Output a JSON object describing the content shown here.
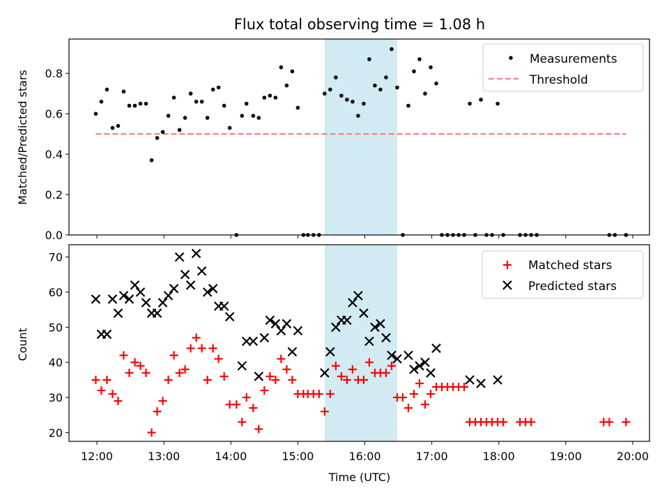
{
  "title": "Flux total observing time = 1.08 h",
  "colors": {
    "measurement": "#000000",
    "threshold": "#ff7f7f",
    "matched": "#ff0000",
    "predicted": "#000000",
    "highlight": "#add8e6"
  },
  "chart_data": [
    {
      "type": "scatter",
      "panel": "top",
      "xlabel": "",
      "ylabel": "Matched/Predicted stars",
      "ylim": [
        0.0,
        0.97
      ],
      "yticks": [
        0.0,
        0.2,
        0.4,
        0.6,
        0.8
      ],
      "ytick_labels": [
        "0.0",
        "0.2",
        "0.4",
        "0.6",
        "0.8"
      ],
      "highlight_span": [
        "15:24",
        "16:29"
      ],
      "legend": {
        "position": "top-right",
        "entries": [
          "Measurements",
          "Threshold"
        ]
      },
      "series": [
        {
          "name": "Measurements",
          "style": "dot",
          "points": [
            [
              "11:59",
              0.6
            ],
            [
              "12:04",
              0.66
            ],
            [
              "12:09",
              0.72
            ],
            [
              "12:14",
              0.53
            ],
            [
              "12:19",
              0.54
            ],
            [
              "12:24",
              0.71
            ],
            [
              "12:29",
              0.64
            ],
            [
              "12:34",
              0.64
            ],
            [
              "12:39",
              0.65
            ],
            [
              "12:44",
              0.65
            ],
            [
              "12:49",
              0.37
            ],
            [
              "12:54",
              0.48
            ],
            [
              "12:59",
              0.51
            ],
            [
              "13:04",
              0.59
            ],
            [
              "13:09",
              0.68
            ],
            [
              "13:14",
              0.52
            ],
            [
              "13:19",
              0.58
            ],
            [
              "13:24",
              0.7
            ],
            [
              "13:29",
              0.66
            ],
            [
              "13:34",
              0.66
            ],
            [
              "13:39",
              0.58
            ],
            [
              "13:44",
              0.72
            ],
            [
              "13:49",
              0.73
            ],
            [
              "13:54",
              0.64
            ],
            [
              "13:59",
              0.53
            ],
            [
              "14:05",
              0.0
            ],
            [
              "14:10",
              0.59
            ],
            [
              "14:14",
              0.65
            ],
            [
              "14:20",
              0.59
            ],
            [
              "14:25",
              0.58
            ],
            [
              "14:30",
              0.68
            ],
            [
              "14:35",
              0.69
            ],
            [
              "14:40",
              0.68
            ],
            [
              "14:45",
              0.83
            ],
            [
              "14:50",
              0.74
            ],
            [
              "14:55",
              0.81
            ],
            [
              "15:00",
              0.63
            ],
            [
              "15:05",
              0.0
            ],
            [
              "15:09",
              0.0
            ],
            [
              "15:14",
              0.0
            ],
            [
              "15:19",
              0.0
            ],
            [
              "15:24",
              0.7
            ],
            [
              "15:29",
              0.72
            ],
            [
              "15:34",
              0.78
            ],
            [
              "15:39",
              0.69
            ],
            [
              "15:44",
              0.67
            ],
            [
              "15:49",
              0.66
            ],
            [
              "15:54",
              0.59
            ],
            [
              "15:59",
              0.65
            ],
            [
              "16:04",
              0.87
            ],
            [
              "16:09",
              0.74
            ],
            [
              "16:14",
              0.72
            ],
            [
              "16:19",
              0.78
            ],
            [
              "16:24",
              0.92
            ],
            [
              "16:29",
              0.73
            ],
            [
              "16:34",
              0.0
            ],
            [
              "16:39",
              0.64
            ],
            [
              "16:44",
              0.81
            ],
            [
              "16:49",
              0.87
            ],
            [
              "16:54",
              0.7
            ],
            [
              "16:59",
              0.83
            ],
            [
              "17:04",
              0.75
            ],
            [
              "17:09",
              0.0
            ],
            [
              "17:14",
              0.0
            ],
            [
              "17:19",
              0.0
            ],
            [
              "17:24",
              0.0
            ],
            [
              "17:29",
              0.0
            ],
            [
              "17:34",
              0.65
            ],
            [
              "17:39",
              0.0
            ],
            [
              "17:44",
              0.67
            ],
            [
              "17:49",
              0.0
            ],
            [
              "17:54",
              0.0
            ],
            [
              "17:59",
              0.65
            ],
            [
              "18:04",
              0.0
            ],
            [
              "18:19",
              0.0
            ],
            [
              "18:24",
              0.0
            ],
            [
              "18:29",
              0.0
            ],
            [
              "18:34",
              0.0
            ],
            [
              "19:39",
              0.0
            ],
            [
              "19:44",
              0.0
            ],
            [
              "19:54",
              0.0
            ]
          ]
        },
        {
          "name": "Threshold",
          "style": "dashed-line",
          "points": [
            [
              "11:59",
              0.5
            ],
            [
              "19:54",
              0.5
            ]
          ]
        }
      ]
    },
    {
      "type": "scatter",
      "panel": "bottom",
      "xlabel": "Time (UTC)",
      "ylabel": "Count",
      "ylim": [
        17.5,
        73.5
      ],
      "yticks": [
        20,
        30,
        40,
        50,
        60,
        70
      ],
      "xlim": [
        "11:35",
        "20:15"
      ],
      "xticks": [
        "12:00",
        "13:00",
        "14:00",
        "15:00",
        "16:00",
        "17:00",
        "18:00",
        "19:00",
        "20:00"
      ],
      "highlight_span": [
        "15:24",
        "16:29"
      ],
      "legend": {
        "position": "top-right",
        "entries": [
          "Matched stars",
          "Predicted stars"
        ]
      },
      "series": [
        {
          "name": "Matched stars",
          "style": "plus",
          "points": [
            [
              "11:59",
              35
            ],
            [
              "12:04",
              32
            ],
            [
              "12:09",
              35
            ],
            [
              "12:14",
              31
            ],
            [
              "12:19",
              29
            ],
            [
              "12:24",
              42
            ],
            [
              "12:29",
              37
            ],
            [
              "12:34",
              40
            ],
            [
              "12:39",
              39
            ],
            [
              "12:44",
              37
            ],
            [
              "12:49",
              20
            ],
            [
              "12:54",
              26
            ],
            [
              "12:59",
              29
            ],
            [
              "13:04",
              35
            ],
            [
              "13:09",
              42
            ],
            [
              "13:14",
              37
            ],
            [
              "13:19",
              38
            ],
            [
              "13:24",
              44
            ],
            [
              "13:29",
              47
            ],
            [
              "13:34",
              44
            ],
            [
              "13:39",
              35
            ],
            [
              "13:44",
              44
            ],
            [
              "13:49",
              41
            ],
            [
              "13:54",
              36
            ],
            [
              "13:59",
              28
            ],
            [
              "14:05",
              28
            ],
            [
              "14:10",
              23
            ],
            [
              "14:14",
              30
            ],
            [
              "14:20",
              27
            ],
            [
              "14:25",
              21
            ],
            [
              "14:30",
              32
            ],
            [
              "14:35",
              36
            ],
            [
              "14:40",
              35
            ],
            [
              "14:45",
              41
            ],
            [
              "14:50",
              38
            ],
            [
              "14:55",
              35
            ],
            [
              "15:00",
              31
            ],
            [
              "15:05",
              31
            ],
            [
              "15:09",
              31
            ],
            [
              "15:14",
              31
            ],
            [
              "15:19",
              31
            ],
            [
              "15:24",
              26
            ],
            [
              "15:29",
              31
            ],
            [
              "15:34",
              39
            ],
            [
              "15:39",
              36
            ],
            [
              "15:44",
              35
            ],
            [
              "15:49",
              38
            ],
            [
              "15:54",
              35
            ],
            [
              "15:59",
              35
            ],
            [
              "16:04",
              40
            ],
            [
              "16:09",
              37
            ],
            [
              "16:14",
              37
            ],
            [
              "16:19",
              37
            ],
            [
              "16:24",
              39
            ],
            [
              "16:29",
              30
            ],
            [
              "16:34",
              30
            ],
            [
              "16:39",
              27
            ],
            [
              "16:44",
              31
            ],
            [
              "16:49",
              34
            ],
            [
              "16:54",
              28
            ],
            [
              "16:59",
              31
            ],
            [
              "17:04",
              33
            ],
            [
              "17:09",
              33
            ],
            [
              "17:14",
              33
            ],
            [
              "17:19",
              33
            ],
            [
              "17:24",
              33
            ],
            [
              "17:29",
              33
            ],
            [
              "17:34",
              23
            ],
            [
              "17:39",
              23
            ],
            [
              "17:44",
              23
            ],
            [
              "17:49",
              23
            ],
            [
              "17:54",
              23
            ],
            [
              "17:59",
              23
            ],
            [
              "18:04",
              23
            ],
            [
              "18:19",
              23
            ],
            [
              "18:24",
              23
            ],
            [
              "18:29",
              23
            ],
            [
              "19:34",
              23
            ],
            [
              "19:39",
              23
            ],
            [
              "19:54",
              23
            ]
          ]
        },
        {
          "name": "Predicted stars",
          "style": "x",
          "points": [
            [
              "11:59",
              58
            ],
            [
              "12:04",
              48
            ],
            [
              "12:09",
              48
            ],
            [
              "12:14",
              58
            ],
            [
              "12:19",
              54
            ],
            [
              "12:24",
              59
            ],
            [
              "12:29",
              58
            ],
            [
              "12:34",
              62
            ],
            [
              "12:39",
              60
            ],
            [
              "12:44",
              57
            ],
            [
              "12:49",
              54
            ],
            [
              "12:54",
              54
            ],
            [
              "12:59",
              57
            ],
            [
              "13:04",
              59
            ],
            [
              "13:09",
              61
            ],
            [
              "13:14",
              70
            ],
            [
              "13:19",
              65
            ],
            [
              "13:24",
              62
            ],
            [
              "13:29",
              71
            ],
            [
              "13:34",
              66
            ],
            [
              "13:39",
              60
            ],
            [
              "13:44",
              61
            ],
            [
              "13:49",
              56
            ],
            [
              "13:54",
              56
            ],
            [
              "13:59",
              53
            ],
            [
              "14:10",
              39
            ],
            [
              "14:14",
              46
            ],
            [
              "14:20",
              46
            ],
            [
              "14:25",
              36
            ],
            [
              "14:30",
              47
            ],
            [
              "14:35",
              52
            ],
            [
              "14:40",
              51
            ],
            [
              "14:45",
              49
            ],
            [
              "14:50",
              51
            ],
            [
              "14:55",
              43
            ],
            [
              "15:00",
              49
            ],
            [
              "15:24",
              37
            ],
            [
              "15:29",
              43
            ],
            [
              "15:34",
              50
            ],
            [
              "15:39",
              52
            ],
            [
              "15:44",
              52
            ],
            [
              "15:49",
              57
            ],
            [
              "15:54",
              59
            ],
            [
              "15:59",
              54
            ],
            [
              "16:04",
              46
            ],
            [
              "16:09",
              50
            ],
            [
              "16:14",
              51
            ],
            [
              "16:19",
              47
            ],
            [
              "16:24",
              42
            ],
            [
              "16:29",
              41
            ],
            [
              "16:39",
              42
            ],
            [
              "16:44",
              38
            ],
            [
              "16:49",
              39
            ],
            [
              "16:54",
              40
            ],
            [
              "16:59",
              37
            ],
            [
              "17:04",
              44
            ],
            [
              "17:34",
              35
            ],
            [
              "17:44",
              34
            ],
            [
              "17:59",
              35
            ]
          ]
        }
      ]
    }
  ]
}
